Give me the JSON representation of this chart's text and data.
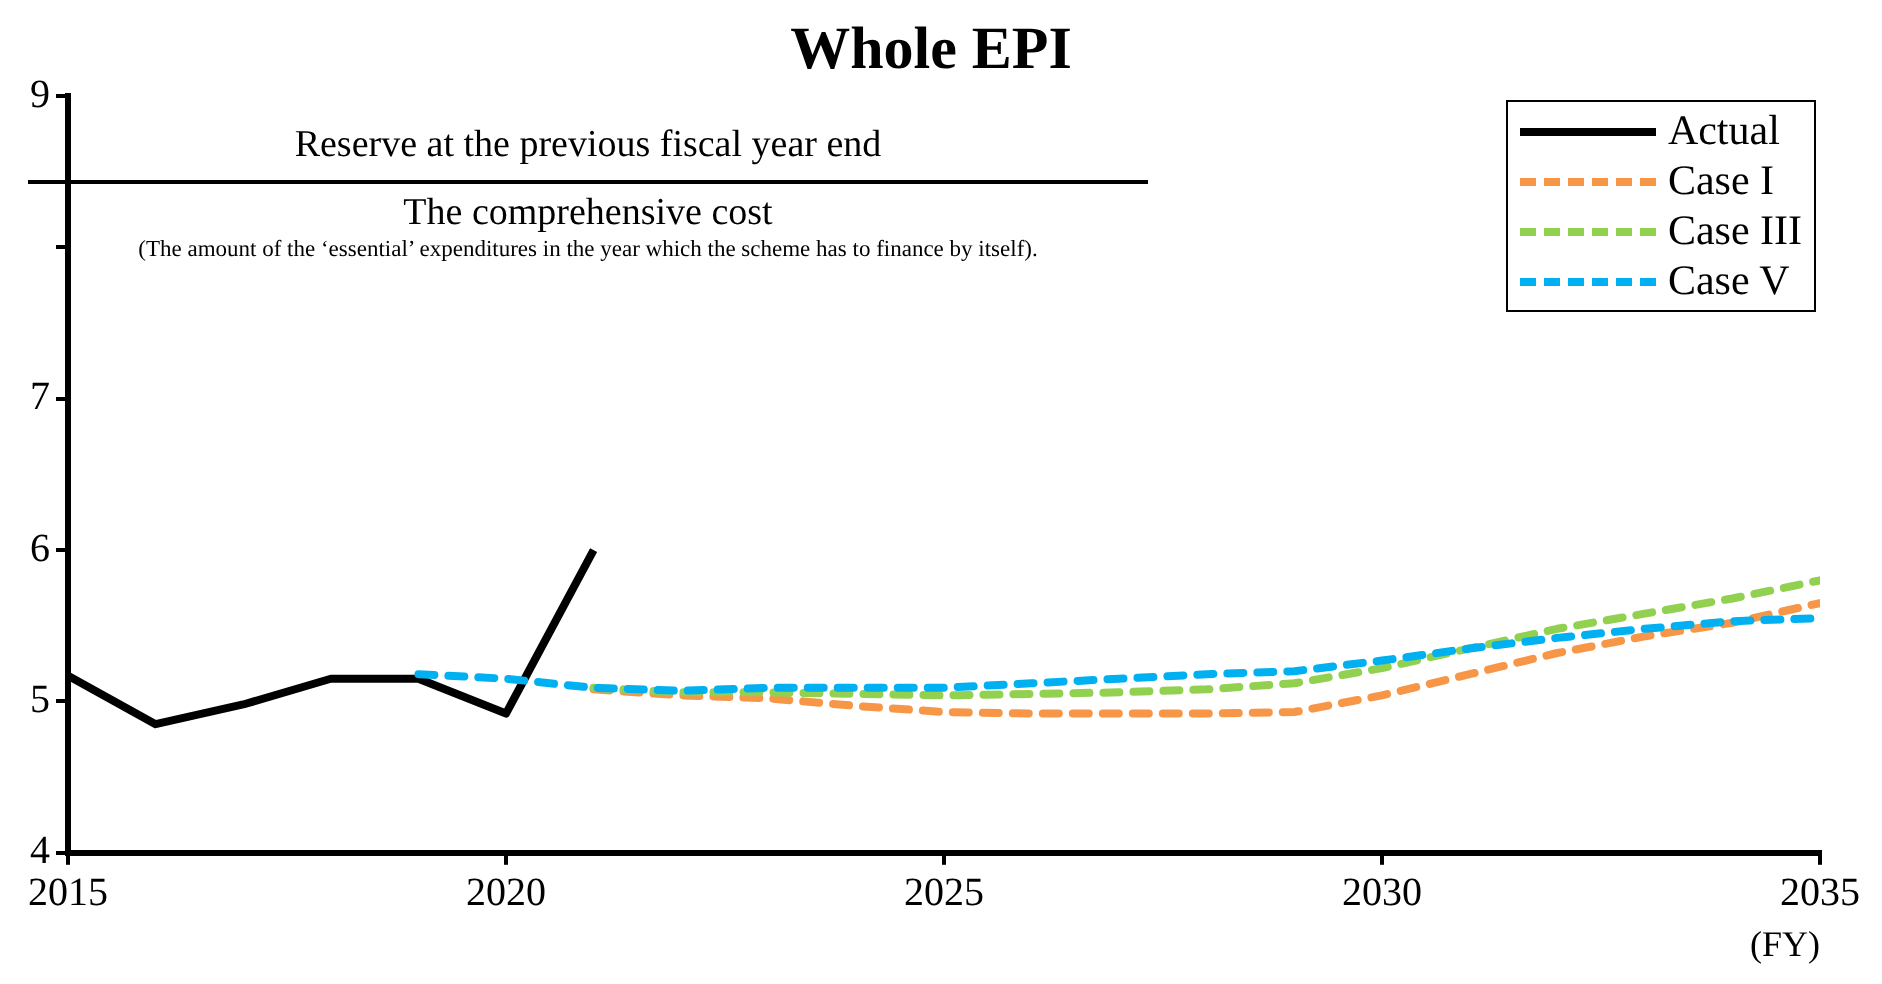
{
  "chart_data": {
    "type": "line",
    "title": "Whole EPI",
    "xlabel": "(FY)",
    "annotations": [
      "Reserve at the previous fiscal year end",
      "The comprehensive cost",
      "(The amount of the ‘essential’ expenditures in the year which the scheme has to finance by itself)."
    ],
    "x": [
      2015,
      2016,
      2017,
      2018,
      2019,
      2020,
      2021,
      2022,
      2023,
      2024,
      2025,
      2026,
      2027,
      2028,
      2029,
      2030,
      2031,
      2032,
      2033,
      2034,
      2035
    ],
    "series": [
      {
        "name": "Actual",
        "color": "#000000",
        "line_style": "solid",
        "values": [
          5.17,
          4.85,
          4.98,
          5.15,
          5.15,
          4.92,
          6.0,
          null,
          null,
          null,
          null,
          null,
          null,
          null,
          null,
          null,
          null,
          null,
          null,
          null,
          null
        ]
      },
      {
        "name": "Case I",
        "color": "#f79646",
        "line_style": "dashed",
        "values": [
          null,
          null,
          null,
          null,
          null,
          null,
          5.08,
          5.04,
          5.02,
          4.97,
          4.93,
          4.92,
          4.92,
          4.92,
          4.93,
          5.04,
          5.18,
          5.32,
          5.43,
          5.52,
          5.65
        ]
      },
      {
        "name": "Case III",
        "color": "#92d050",
        "line_style": "dashed",
        "values": [
          null,
          null,
          null,
          null,
          null,
          null,
          5.09,
          5.06,
          5.06,
          5.05,
          5.04,
          5.05,
          5.06,
          5.08,
          5.12,
          5.22,
          5.35,
          5.48,
          5.58,
          5.68,
          5.8
        ]
      },
      {
        "name": "Case V",
        "color": "#00b0f0",
        "line_style": "dashed",
        "values": [
          null,
          null,
          null,
          null,
          5.18,
          5.15,
          5.09,
          5.07,
          5.09,
          5.09,
          5.09,
          5.12,
          5.15,
          5.18,
          5.2,
          5.27,
          5.35,
          5.42,
          5.48,
          5.53,
          5.55
        ]
      }
    ],
    "xlim": [
      2015,
      2035
    ],
    "xticks": [
      2015,
      2020,
      2025,
      2030,
      2035
    ],
    "ylim": [
      4,
      9
    ],
    "yticks": [
      4,
      5,
      6,
      7,
      {
        "value": 8,
        "label": null
      },
      9
    ],
    "grid": false,
    "legend": "top right",
    "marker": "none"
  }
}
